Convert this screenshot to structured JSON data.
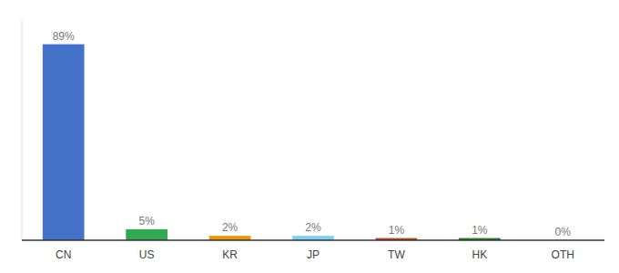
{
  "chart_data": {
    "type": "bar",
    "categories": [
      "CN",
      "US",
      "KR",
      "JP",
      "TW",
      "HK",
      "OTH"
    ],
    "values": [
      89,
      5,
      2,
      2,
      1,
      1,
      0
    ],
    "value_labels": [
      "89%",
      "5%",
      "2%",
      "2%",
      "1%",
      "1%",
      "0%"
    ],
    "colors": [
      "#4472c9",
      "#33a853",
      "#e8960a",
      "#7ecff5",
      "#b94e2a",
      "#2e7d32",
      "#cccccc"
    ],
    "ylim": [
      0,
      100
    ],
    "data_labels": true,
    "tick_labels": "x",
    "grid": false
  }
}
